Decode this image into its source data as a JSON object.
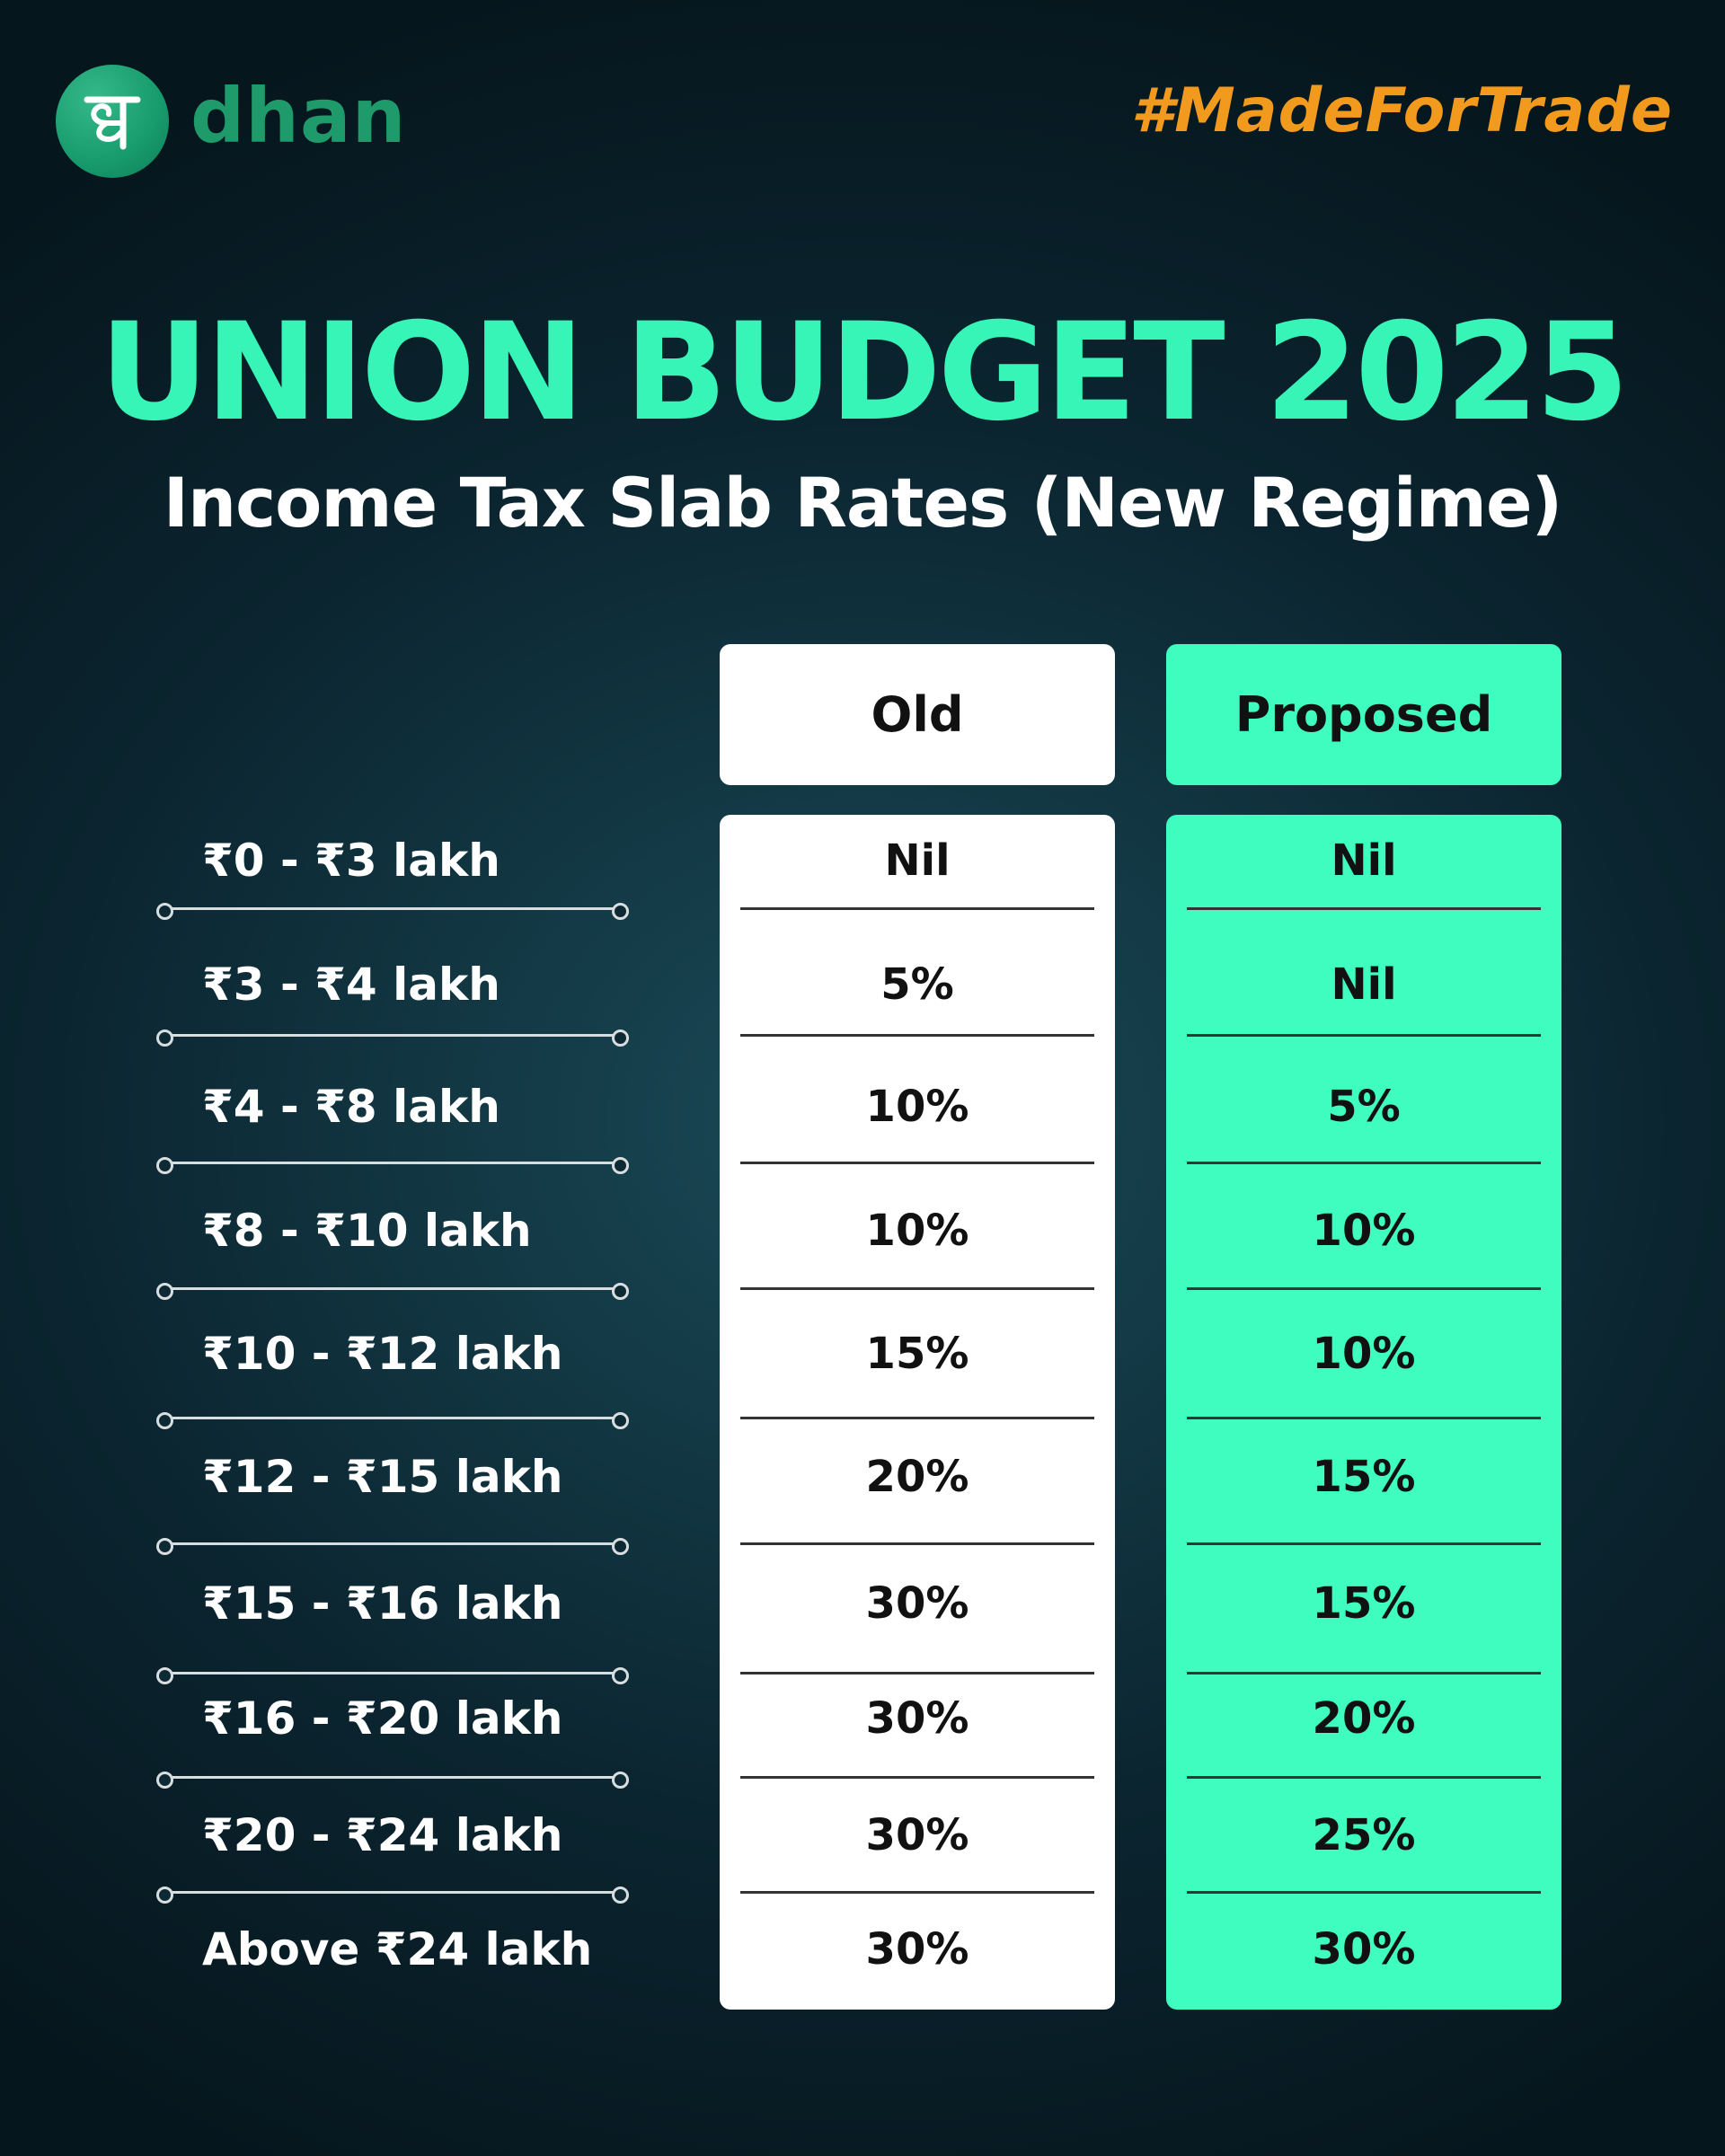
{
  "brand": {
    "logo_icon": "dhan-devanagari-glyph-icon",
    "name": "dhan",
    "hashtag": "#MadeForTrade",
    "colors": {
      "logo": "#1f9a6b",
      "hashtag": "#f19a1d",
      "accent": "#36f5b6",
      "proposed_column": "#3ffcbf"
    }
  },
  "header": {
    "title": "UNION BUDGET 2025",
    "subtitle": "Income Tax Slab Rates (New Regime)"
  },
  "table": {
    "columns": {
      "old": "Old",
      "proposed": "Proposed"
    },
    "rows": [
      {
        "slab": "₹0 - ₹3 lakh",
        "old": "Nil",
        "proposed": "Nil"
      },
      {
        "slab": "₹3 - ₹4 lakh",
        "old": "5%",
        "proposed": "Nil"
      },
      {
        "slab": "₹4 - ₹8 lakh",
        "old": "10%",
        "proposed": "5%"
      },
      {
        "slab": "₹8 - ₹10 lakh",
        "old": "10%",
        "proposed": "10%"
      },
      {
        "slab": "₹10 - ₹12 lakh",
        "old": "15%",
        "proposed": "10%"
      },
      {
        "slab": "₹12 - ₹15 lakh",
        "old": "20%",
        "proposed": "15%"
      },
      {
        "slab": "₹15 - ₹16 lakh",
        "old": "30%",
        "proposed": "15%"
      },
      {
        "slab": "₹16 - ₹20 lakh",
        "old": "30%",
        "proposed": "20%"
      },
      {
        "slab": "₹20 - ₹24 lakh",
        "old": "30%",
        "proposed": "25%"
      },
      {
        "slab": "Above ₹24 lakh",
        "old": "30%",
        "proposed": "30%"
      }
    ]
  }
}
